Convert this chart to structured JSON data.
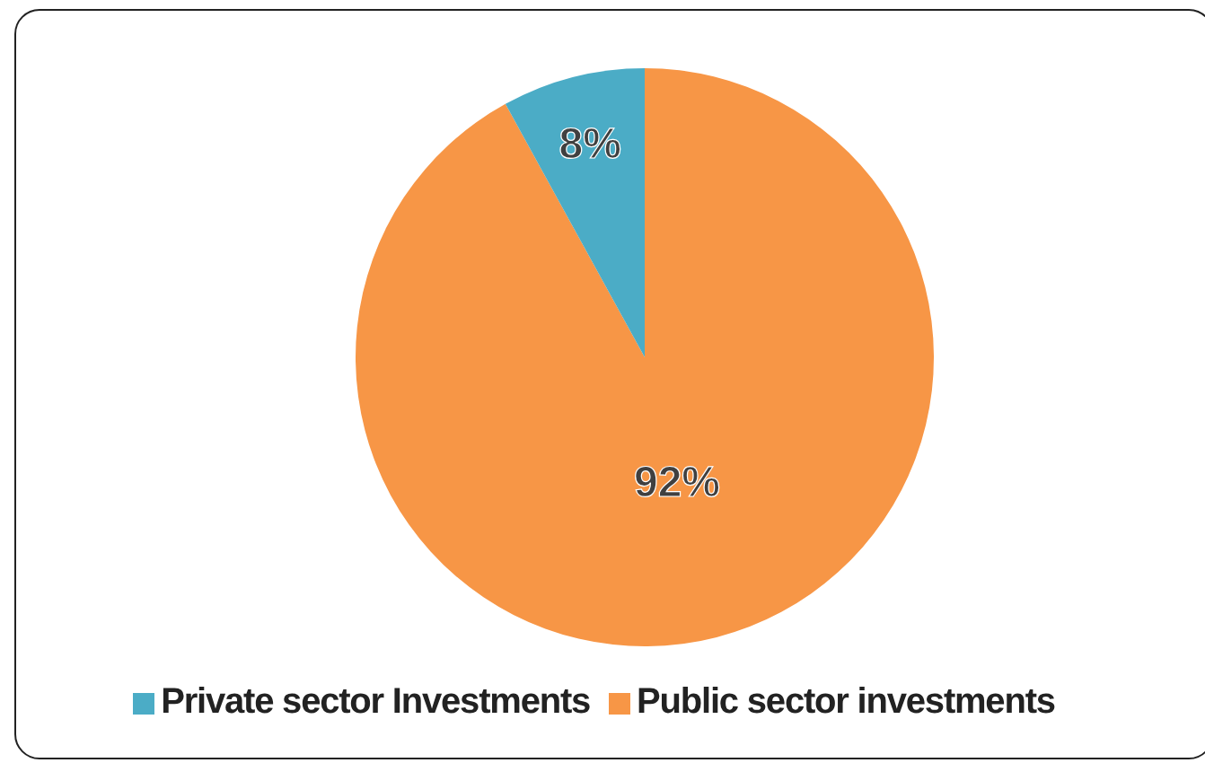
{
  "chart_data": {
    "type": "pie",
    "categories": [
      "Public sector investments",
      "Private sector Investments"
    ],
    "values": [
      92,
      8
    ],
    "colors": [
      "#f79646",
      "#4bacc6"
    ],
    "value_labels": [
      "92%",
      "8%"
    ],
    "legend": "bottom"
  }
}
